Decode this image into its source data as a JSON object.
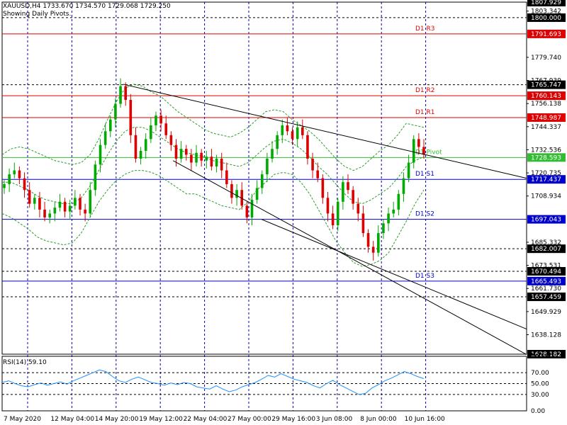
{
  "header": {
    "symbol_line": "XAUUSD,H4  1733.670 1734.570 1729.068 1729.250",
    "pivots_note": "Showing Daily Pivots."
  },
  "rsi_label": "RSI(14) 59.10",
  "chart_data": {
    "type": "candlestick",
    "symbol": "XAUUSD",
    "timeframe": "H4",
    "ohlc_last": {
      "open": 1733.67,
      "high": 1734.57,
      "low": 1729.068,
      "close": 1729.25
    },
    "ylim": [
      1628.182,
      1807.929
    ],
    "price_ticks": [
      1803.342,
      1779.74,
      1767.939,
      1756.138,
      1744.337,
      1732.536,
      1720.735,
      1708.934,
      1685.332,
      1673.531,
      1661.73,
      1649.929,
      1638.128
    ],
    "x_tick_labels": [
      "7 May 2020",
      "12 May 04:00",
      "14 May 20:00",
      "19 May 12:00",
      "22 May 04:00",
      "27 May 00:00",
      "29 May 16:00",
      "3 Jun 08:00",
      "8 Jun 00:00",
      "10 Jun 16:00"
    ],
    "pivots": [
      {
        "name": "D1 R3",
        "value": 1791.693,
        "color": "#dd0000"
      },
      {
        "name": "D1 R2",
        "value": 1760.143,
        "color": "#dd0000"
      },
      {
        "name": "D1 R1",
        "value": 1748.987,
        "color": "#dd0000"
      },
      {
        "name": "D1 Pivot",
        "value": 1728.593,
        "color": "#33bb33"
      },
      {
        "name": "D1 S1",
        "value": 1717.437,
        "color": "#0000cc"
      },
      {
        "name": "D1 S2",
        "value": 1697.043,
        "color": "#0000cc"
      },
      {
        "name": "D1 S3",
        "value": 1665.493,
        "color": "#0000cc"
      }
    ],
    "price_labels": [
      {
        "value": 1807.929,
        "color": "#000000"
      },
      {
        "value": 1800.0,
        "color": "#000000"
      },
      {
        "value": 1765.747,
        "color": "#000000"
      },
      {
        "value": 1682.007,
        "color": "#000000"
      },
      {
        "value": 1670.494,
        "color": "#000000"
      },
      {
        "value": 1657.459,
        "color": "#000000"
      },
      {
        "value": 1628.182,
        "color": "#000000"
      }
    ],
    "dashed_levels": [
      1807.929,
      1800.0,
      1765.747,
      1682.007,
      1670.494,
      1657.459
    ],
    "close_series": [
      1715,
      1720,
      1722,
      1718,
      1712,
      1705,
      1708,
      1702,
      1698,
      1700,
      1703,
      1706,
      1701,
      1704,
      1708,
      1702,
      1700,
      1712,
      1725,
      1735,
      1742,
      1748,
      1756,
      1765,
      1758,
      1740,
      1728,
      1732,
      1738,
      1745,
      1750,
      1746,
      1740,
      1735,
      1728,
      1733,
      1730,
      1726,
      1731,
      1727,
      1729,
      1724,
      1728,
      1722,
      1715,
      1708,
      1712,
      1704,
      1698,
      1707,
      1713,
      1720,
      1728,
      1733,
      1740,
      1745,
      1742,
      1738,
      1744,
      1740,
      1728,
      1722,
      1718,
      1708,
      1700,
      1694,
      1706,
      1716,
      1712,
      1705,
      1700,
      1690,
      1683,
      1680,
      1690,
      1695,
      1700,
      1702,
      1710,
      1718,
      1726,
      1738,
      1734,
      1730
    ],
    "bollinger": {
      "upper": [
        1730,
        1733,
        1734,
        1733,
        1731,
        1729,
        1727,
        1726,
        1725,
        1726,
        1730,
        1738,
        1748,
        1757,
        1764,
        1766,
        1765,
        1762,
        1760,
        1756,
        1752,
        1749,
        1746,
        1743,
        1741,
        1740,
        1739,
        1741,
        1744,
        1748,
        1752,
        1753,
        1752,
        1748,
        1745,
        1742,
        1738,
        1733,
        1728,
        1724,
        1722,
        1724,
        1728,
        1732,
        1735,
        1740,
        1746,
        1745,
        1744
      ],
      "middle": [
        1716,
        1716,
        1714,
        1712,
        1709,
        1707,
        1706,
        1705,
        1705,
        1708,
        1714,
        1722,
        1730,
        1737,
        1742,
        1744,
        1744,
        1742,
        1739,
        1736,
        1733,
        1731,
        1730,
        1729,
        1727,
        1726,
        1725,
        1724,
        1726,
        1730,
        1734,
        1737,
        1738,
        1736,
        1733,
        1729,
        1724,
        1720,
        1715,
        1710,
        1706,
        1705,
        1707,
        1710,
        1713,
        1718,
        1724,
        1727,
        1729
      ],
      "lower": [
        1700,
        1698,
        1695,
        1692,
        1688,
        1686,
        1685,
        1684,
        1685,
        1690,
        1698,
        1706,
        1712,
        1717,
        1720,
        1722,
        1722,
        1721,
        1719,
        1716,
        1713,
        1710,
        1710,
        1708,
        1706,
        1704,
        1703,
        1702,
        1706,
        1712,
        1716,
        1720,
        1721,
        1720,
        1716,
        1710,
        1702,
        1694,
        1686,
        1680,
        1675,
        1673,
        1674,
        1676,
        1680,
        1688,
        1696,
        1705,
        1712
      ]
    },
    "rsi": {
      "value": 59.1,
      "ticks": [
        100.0,
        70.0,
        50.0,
        30.0,
        0.0
      ],
      "ylim": [
        0,
        100
      ],
      "levels": [
        70,
        50,
        30
      ],
      "values": [
        52,
        55,
        50,
        46,
        44,
        48,
        51,
        47,
        50,
        53,
        49,
        55,
        60,
        65,
        70,
        75,
        72,
        63,
        55,
        52,
        58,
        62,
        57,
        52,
        50,
        47,
        51,
        48,
        52,
        50,
        44,
        42,
        40,
        46,
        40,
        35,
        38,
        44,
        48,
        52,
        58,
        65,
        62,
        68,
        63,
        58,
        55,
        52,
        46,
        42,
        50,
        56,
        48,
        42,
        36,
        30,
        32,
        42,
        48,
        55,
        60,
        66,
        72,
        68,
        63,
        59.1
      ]
    },
    "trendlines": [
      {
        "from": [
          "14 May 20:00",
          1766
        ],
        "to": [
          "end",
          1718
        ]
      },
      {
        "from": [
          "19 May 12:00",
          1727
        ],
        "to": [
          "end",
          1628
        ]
      },
      {
        "from": [
          "27 May 00:00",
          1697
        ],
        "to": [
          "end",
          1641
        ]
      }
    ]
  }
}
